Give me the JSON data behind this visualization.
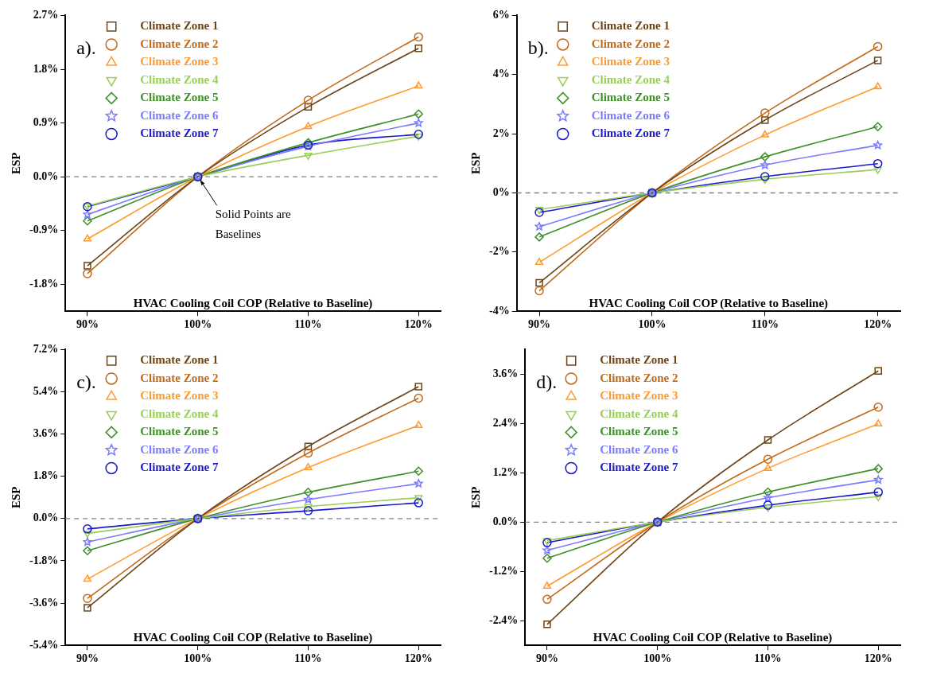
{
  "chart_data": [
    {
      "type": "line",
      "title": "a).",
      "xlabel": "HVAC Cooling Coil COP (Relative to Baseline)",
      "ylabel": "ESP",
      "x": [
        90,
        100,
        110,
        120
      ],
      "xlim": [
        88,
        122
      ],
      "xticks": [
        {
          "value": 90,
          "label": "90%"
        },
        {
          "value": 100,
          "label": "100%"
        },
        {
          "value": 110,
          "label": "110%"
        },
        {
          "value": 120,
          "label": "120%"
        }
      ],
      "ylim": [
        -2.25,
        2.7
      ],
      "yticks": [
        {
          "value": -1.8,
          "label": "-1.8%"
        },
        {
          "value": -0.9,
          "label": "-0.9%"
        },
        {
          "value": 0,
          "label": "0.0%"
        },
        {
          "value": 0.9,
          "label": "0.9%"
        },
        {
          "value": 1.8,
          "label": "1.8%"
        },
        {
          "value": 2.7,
          "label": "2.7%"
        }
      ],
      "grid": false,
      "legend": "top left",
      "annotations": [
        {
          "text": "Solid Points are Baselines",
          "x": 100,
          "y": 0
        }
      ],
      "ref_lines": [
        {
          "axis": "y",
          "value": 0,
          "color": "#808080",
          "line_style": "dashed"
        }
      ],
      "series": [
        {
          "name": "Climate Zone 1",
          "color": "#6b4418",
          "marker": "square",
          "values": [
            -1.49,
            0,
            1.17,
            2.15
          ]
        },
        {
          "name": "Climate Zone 2",
          "color": "#c06a1a",
          "marker": "circle",
          "values": [
            -1.62,
            0,
            1.28,
            2.34
          ]
        },
        {
          "name": "Climate Zone 3",
          "color": "#ff9a2e",
          "marker": "triangle",
          "values": [
            -1.04,
            0,
            0.84,
            1.52
          ]
        },
        {
          "name": "Climate Zone 4",
          "color": "#9acd5a",
          "marker": "triangle-down",
          "values": [
            -0.49,
            0,
            0.36,
            0.68
          ]
        },
        {
          "name": "Climate Zone 5",
          "color": "#3f8f2a",
          "marker": "diamond",
          "values": [
            -0.74,
            0,
            0.57,
            1.05
          ]
        },
        {
          "name": "Climate Zone 6",
          "color": "#7b7bff",
          "marker": "star",
          "values": [
            -0.63,
            0,
            0.51,
            0.9
          ]
        },
        {
          "name": "Climate Zone 7",
          "color": "#1a1acc",
          "marker": "circle",
          "values": [
            -0.5,
            0,
            0.53,
            0.71
          ]
        }
      ]
    },
    {
      "type": "line",
      "title": "b).",
      "xlabel": "HVAC Cooling Coil COP (Relative to Baseline)",
      "ylabel": "ESP",
      "x": [
        90,
        100,
        110,
        120
      ],
      "xlim": [
        88,
        122
      ],
      "xticks": [
        {
          "value": 90,
          "label": "90%"
        },
        {
          "value": 100,
          "label": "100%"
        },
        {
          "value": 110,
          "label": "110%"
        },
        {
          "value": 120,
          "label": "120%"
        }
      ],
      "ylim": [
        -4,
        6
      ],
      "yticks": [
        {
          "value": -4,
          "label": "-4%"
        },
        {
          "value": -2,
          "label": "-2%"
        },
        {
          "value": 0,
          "label": "0%"
        },
        {
          "value": 2,
          "label": "2%"
        },
        {
          "value": 4,
          "label": "4%"
        },
        {
          "value": 6,
          "label": "6%"
        }
      ],
      "grid": false,
      "legend": "top left",
      "ref_lines": [
        {
          "axis": "y",
          "value": 0,
          "color": "#808080",
          "line_style": "dashed"
        }
      ],
      "series": [
        {
          "name": "Climate Zone 1",
          "color": "#6b4418",
          "marker": "square",
          "values": [
            -3.04,
            0,
            2.46,
            4.48
          ]
        },
        {
          "name": "Climate Zone 2",
          "color": "#c06a1a",
          "marker": "circle",
          "values": [
            -3.31,
            0,
            2.7,
            4.95
          ]
        },
        {
          "name": "Climate Zone 3",
          "color": "#ff9a2e",
          "marker": "triangle",
          "values": [
            -2.35,
            0,
            1.96,
            3.59
          ]
        },
        {
          "name": "Climate Zone 4",
          "color": "#9acd5a",
          "marker": "triangle-down",
          "values": [
            -0.56,
            0,
            0.46,
            0.79
          ]
        },
        {
          "name": "Climate Zone 5",
          "color": "#3f8f2a",
          "marker": "diamond",
          "values": [
            -1.49,
            0,
            1.22,
            2.24
          ]
        },
        {
          "name": "Climate Zone 6",
          "color": "#7b7bff",
          "marker": "star",
          "values": [
            -1.14,
            0,
            0.94,
            1.61
          ]
        },
        {
          "name": "Climate Zone 7",
          "color": "#1a1acc",
          "marker": "circle",
          "values": [
            -0.66,
            0,
            0.55,
            0.99
          ]
        }
      ]
    },
    {
      "type": "line",
      "title": "c).",
      "xlabel": "HVAC Cooling Coil COP (Relative to Baseline)",
      "ylabel": "ESP",
      "x": [
        90,
        100,
        110,
        120
      ],
      "xlim": [
        88,
        122
      ],
      "xticks": [
        {
          "value": 90,
          "label": "90%"
        },
        {
          "value": 100,
          "label": "100%"
        },
        {
          "value": 110,
          "label": "110%"
        },
        {
          "value": 120,
          "label": "120%"
        }
      ],
      "ylim": [
        -5.4,
        7.2
      ],
      "yticks": [
        {
          "value": -5.4,
          "label": "-5.4%"
        },
        {
          "value": -3.6,
          "label": "-3.6%"
        },
        {
          "value": -1.8,
          "label": "-1.8%"
        },
        {
          "value": 0,
          "label": "0.0%"
        },
        {
          "value": 1.8,
          "label": "1.8%"
        },
        {
          "value": 3.6,
          "label": "3.6%"
        },
        {
          "value": 5.4,
          "label": "5.4%"
        },
        {
          "value": 7.2,
          "label": "7.2%"
        }
      ],
      "grid": false,
      "legend": "top left",
      "ref_lines": [
        {
          "axis": "y",
          "value": 0,
          "color": "#808080",
          "line_style": "dashed"
        }
      ],
      "series": [
        {
          "name": "Climate Zone 1",
          "color": "#6b4418",
          "marker": "square",
          "values": [
            -3.8,
            0,
            3.07,
            5.62
          ]
        },
        {
          "name": "Climate Zone 2",
          "color": "#c06a1a",
          "marker": "circle",
          "values": [
            -3.4,
            0,
            2.79,
            5.13
          ]
        },
        {
          "name": "Climate Zone 3",
          "color": "#ff9a2e",
          "marker": "triangle",
          "values": [
            -2.58,
            0,
            2.17,
            3.97
          ]
        },
        {
          "name": "Climate Zone 4",
          "color": "#9acd5a",
          "marker": "triangle-down",
          "values": [
            -0.63,
            0,
            0.51,
            0.89
          ]
        },
        {
          "name": "Climate Zone 5",
          "color": "#3f8f2a",
          "marker": "diamond",
          "values": [
            -1.37,
            0,
            1.12,
            2.02
          ]
        },
        {
          "name": "Climate Zone 6",
          "color": "#7b7bff",
          "marker": "star",
          "values": [
            -1.0,
            0,
            0.81,
            1.49
          ]
        },
        {
          "name": "Climate Zone 7",
          "color": "#1a1acc",
          "marker": "circle",
          "values": [
            -0.44,
            0,
            0.33,
            0.67
          ]
        }
      ]
    },
    {
      "type": "line",
      "title": "d).",
      "xlabel": "HVAC Cooling Coil COP (Relative to Baseline)",
      "ylabel": "ESP",
      "x": [
        90,
        100,
        110,
        120
      ],
      "xlim": [
        88,
        122
      ],
      "xticks": [
        {
          "value": 90,
          "label": "90%"
        },
        {
          "value": 100,
          "label": "100%"
        },
        {
          "value": 110,
          "label": "110%"
        },
        {
          "value": 120,
          "label": "120%"
        }
      ],
      "ylim": [
        -3,
        4.2
      ],
      "yticks": [
        {
          "value": -2.4,
          "label": "-2.4%"
        },
        {
          "value": -1.2,
          "label": "-1.2%"
        },
        {
          "value": 0,
          "label": "0.0%"
        },
        {
          "value": 1.2,
          "label": "1.2%"
        },
        {
          "value": 2.4,
          "label": "2.4%"
        },
        {
          "value": 3.6,
          "label": "3.6%"
        }
      ],
      "grid": false,
      "legend": "top left",
      "ref_lines": [
        {
          "axis": "y",
          "value": 0,
          "color": "#808080",
          "line_style": "dashed"
        }
      ],
      "series": [
        {
          "name": "Climate Zone 1",
          "color": "#6b4418",
          "marker": "square",
          "values": [
            -2.49,
            0,
            2.0,
            3.68
          ]
        },
        {
          "name": "Climate Zone 2",
          "color": "#c06a1a",
          "marker": "circle",
          "values": [
            -1.88,
            0,
            1.53,
            2.8
          ]
        },
        {
          "name": "Climate Zone 3",
          "color": "#ff9a2e",
          "marker": "triangle",
          "values": [
            -1.56,
            0,
            1.31,
            2.39
          ]
        },
        {
          "name": "Climate Zone 4",
          "color": "#9acd5a",
          "marker": "triangle-down",
          "values": [
            -0.45,
            0,
            0.36,
            0.62
          ]
        },
        {
          "name": "Climate Zone 5",
          "color": "#3f8f2a",
          "marker": "diamond",
          "values": [
            -0.88,
            0,
            0.73,
            1.3
          ]
        },
        {
          "name": "Climate Zone 6",
          "color": "#7b7bff",
          "marker": "star",
          "values": [
            -0.69,
            0,
            0.59,
            1.03
          ]
        },
        {
          "name": "Climate Zone 7",
          "color": "#1a1acc",
          "marker": "circle",
          "values": [
            -0.5,
            0,
            0.41,
            0.73
          ]
        }
      ]
    }
  ]
}
